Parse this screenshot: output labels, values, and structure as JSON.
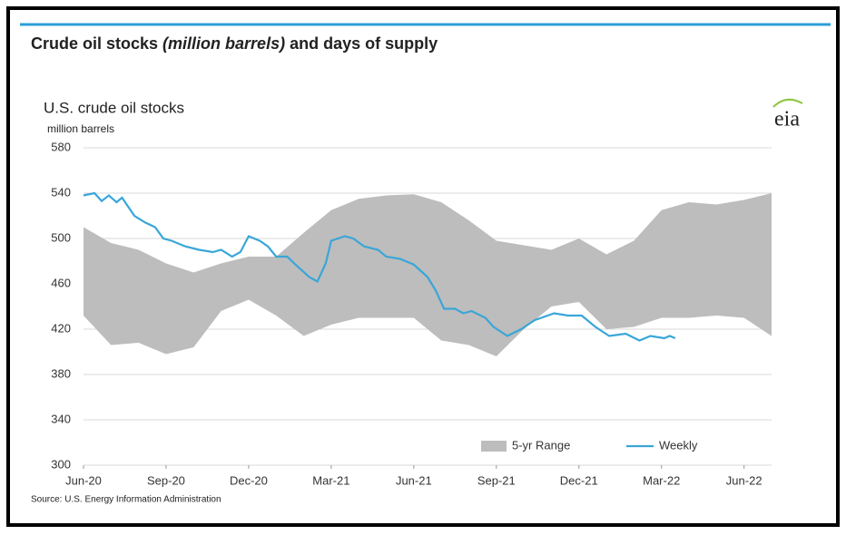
{
  "panel_title": [
    "Crude oil stocks",
    "(million barrels)",
    "and days of supply"
  ],
  "logo": "eia",
  "chart_data": {
    "type": "line",
    "title": "U.S. crude oil stocks",
    "y_label": "million barrels",
    "source": "Source: U.S. Energy Information Administration",
    "xlim": [
      0,
      25
    ],
    "xticks": [
      {
        "value": 0,
        "label": "Jun-20"
      },
      {
        "value": 3,
        "label": "Sep-20"
      },
      {
        "value": 6,
        "label": "Dec-20"
      },
      {
        "value": 9,
        "label": "Mar-21"
      },
      {
        "value": 12,
        "label": "Jun-21"
      },
      {
        "value": 15,
        "label": "Sep-21"
      },
      {
        "value": 18,
        "label": "Dec-21"
      },
      {
        "value": 21,
        "label": "Mar-22"
      },
      {
        "value": 24,
        "label": "Jun-22"
      }
    ],
    "ylim": [
      300,
      580
    ],
    "yticks": [
      300,
      340,
      380,
      420,
      460,
      500,
      540,
      580
    ],
    "grid": true,
    "legend": "bottom-right",
    "series": [
      {
        "name": "5-yr Range",
        "color": "#bdbdbd",
        "kind": "range",
        "x": [
          0,
          1,
          2,
          3,
          4,
          5,
          6,
          7,
          8,
          9,
          10,
          11,
          12,
          13,
          14,
          15,
          16,
          17,
          18,
          19,
          20,
          21,
          22,
          23,
          24,
          25
        ],
        "upper": [
          510,
          496,
          490,
          478,
          470,
          478,
          484,
          484,
          505,
          525,
          535,
          538,
          539,
          532,
          516,
          498,
          494,
          490,
          500,
          486,
          498,
          525,
          532,
          530,
          534,
          540
        ],
        "lower": [
          432,
          406,
          408,
          398,
          404,
          436,
          446,
          432,
          414,
          424,
          430,
          430,
          430,
          410,
          406,
          396,
          420,
          440,
          444,
          420,
          422,
          430,
          430,
          432,
          430,
          414
        ]
      },
      {
        "name": "Weekly",
        "color": "#3aa6d8",
        "x": [
          0,
          0.4,
          0.66,
          0.92,
          1.2,
          1.4,
          1.85,
          2.25,
          2.6,
          2.9,
          3.2,
          3.7,
          4.2,
          4.7,
          5.0,
          5.4,
          5.7,
          6.0,
          6.4,
          6.7,
          7.0,
          7.4,
          7.7,
          8.2,
          8.5,
          8.8,
          9.0,
          9.5,
          9.8,
          10.2,
          10.7,
          11.0,
          11.5,
          12.0,
          12.5,
          12.8,
          13.1,
          13.5,
          13.8,
          14.1,
          14.6,
          14.9,
          15.4,
          15.9,
          16.4,
          17.1,
          17.6,
          18.1,
          18.6,
          19.1,
          19.7,
          20.2,
          20.6,
          21.1,
          21.3,
          21.5
        ],
        "values": [
          538,
          540,
          533,
          538,
          532,
          536,
          520,
          514,
          510,
          500,
          498,
          493,
          490,
          488,
          490,
          484,
          488,
          502,
          498,
          493,
          484,
          484,
          477,
          466,
          462,
          478,
          498,
          502,
          500,
          493,
          490,
          484,
          482,
          477,
          466,
          454,
          438,
          438,
          434,
          436,
          430,
          422,
          414,
          420,
          428,
          434,
          432,
          432,
          422,
          414,
          416,
          410,
          414,
          412,
          414,
          412
        ]
      }
    ]
  }
}
